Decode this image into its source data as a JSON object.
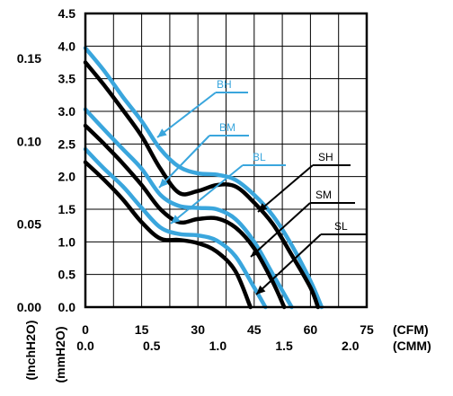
{
  "chart_data": {
    "type": "line",
    "title": "",
    "x_axis_primary": {
      "unit_label": "(CFM)",
      "ticks": [
        "0",
        "15",
        "30",
        "45",
        "60",
        "75"
      ],
      "range": [
        0,
        75
      ]
    },
    "x_axis_secondary": {
      "unit_label": "(CMM)",
      "ticks": [
        "0.0",
        "0.5",
        "1.0",
        "1.5",
        "2.0"
      ],
      "values": [
        0,
        0.5,
        1.0,
        1.5,
        2.0
      ]
    },
    "y_axis_primary": {
      "unit_label": "(mmH2O)",
      "ticks": [
        "0.0",
        "0.5",
        "1.0",
        "1.5",
        "2.0",
        "2.5",
        "3.0",
        "3.5",
        "4.0",
        "4.5"
      ],
      "range": [
        0,
        4.5
      ]
    },
    "y_axis_secondary": {
      "unit_label": "(InchH2O)",
      "ticks": [
        "0.00",
        "0.05",
        "0.10",
        "0.15"
      ],
      "values": [
        0,
        0.05,
        0.1,
        0.15
      ]
    },
    "grid": true,
    "series": [
      {
        "name": "BH",
        "color": "#3aa6dd",
        "x": [
          0,
          5,
          10,
          15,
          20,
          25,
          30,
          35,
          40,
          45,
          50,
          55,
          60,
          63
        ],
        "y": [
          3.97,
          3.62,
          3.22,
          2.85,
          2.42,
          2.15,
          2.05,
          2.03,
          1.95,
          1.72,
          1.4,
          0.95,
          0.4,
          0.0
        ]
      },
      {
        "name": "SH",
        "color": "#000000",
        "x": [
          0,
          5,
          10,
          15,
          20,
          25,
          30,
          35,
          40,
          45,
          50,
          55,
          60,
          62
        ],
        "y": [
          3.75,
          3.4,
          3.02,
          2.62,
          2.12,
          1.75,
          1.78,
          1.87,
          1.85,
          1.6,
          1.27,
          0.8,
          0.3,
          0.0
        ]
      },
      {
        "name": "BM",
        "color": "#3aa6dd",
        "x": [
          0,
          5,
          10,
          15,
          20,
          25,
          30,
          35,
          40,
          45,
          50,
          55
        ],
        "y": [
          3.03,
          2.72,
          2.42,
          2.12,
          1.72,
          1.55,
          1.52,
          1.5,
          1.35,
          1.0,
          0.5,
          0.0
        ]
      },
      {
        "name": "SM",
        "color": "#000000",
        "x": [
          0,
          5,
          10,
          15,
          20,
          25,
          30,
          35,
          40,
          45,
          50,
          53
        ],
        "y": [
          2.78,
          2.5,
          2.2,
          1.87,
          1.5,
          1.3,
          1.35,
          1.36,
          1.22,
          0.9,
          0.38,
          0.0
        ]
      },
      {
        "name": "BL",
        "color": "#3aa6dd",
        "x": [
          0,
          5,
          10,
          15,
          20,
          25,
          30,
          35,
          40,
          45,
          48
        ],
        "y": [
          2.42,
          2.12,
          1.85,
          1.52,
          1.22,
          1.12,
          1.1,
          1.02,
          0.78,
          0.3,
          0.0
        ]
      },
      {
        "name": "SL",
        "color": "#000000",
        "x": [
          0,
          5,
          10,
          15,
          20,
          25,
          30,
          35,
          40,
          44
        ],
        "y": [
          2.22,
          1.95,
          1.65,
          1.3,
          1.05,
          1.03,
          0.98,
          0.85,
          0.55,
          0.0
        ]
      }
    ],
    "annotations": [
      {
        "label": "BH",
        "color": "#3aa6dd"
      },
      {
        "label": "BM",
        "color": "#3aa6dd"
      },
      {
        "label": "BL",
        "color": "#3aa6dd"
      },
      {
        "label": "SH",
        "color": "#000000"
      },
      {
        "label": "SM",
        "color": "#000000"
      },
      {
        "label": "SL",
        "color": "#000000"
      }
    ]
  }
}
